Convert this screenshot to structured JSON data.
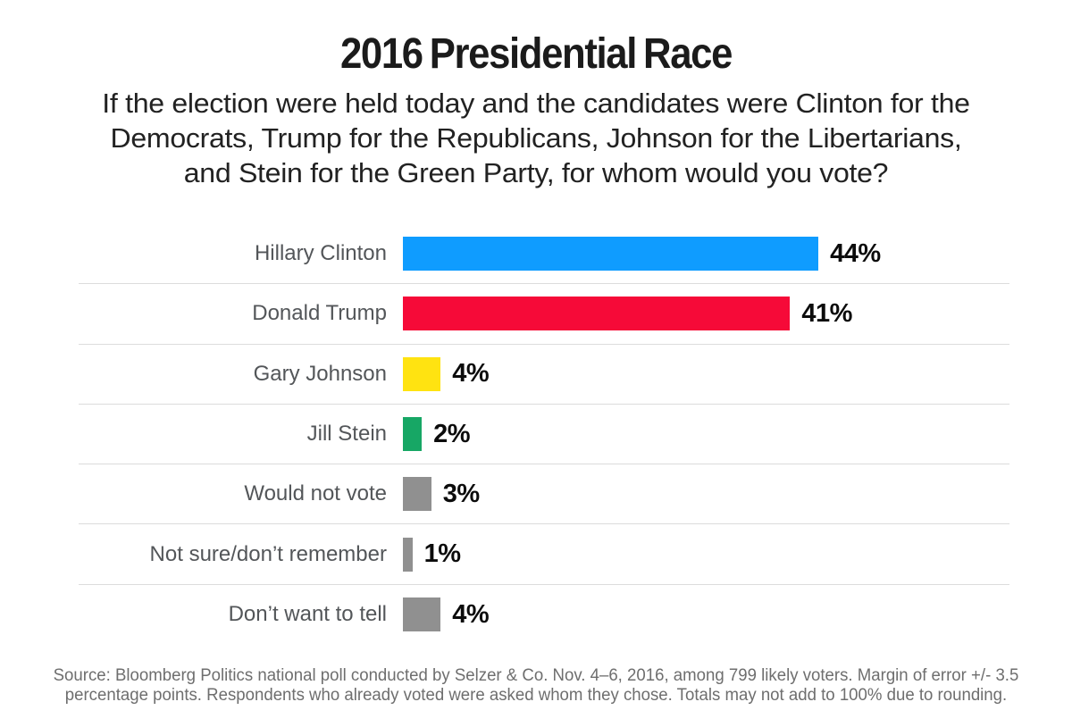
{
  "chart_data": {
    "type": "bar",
    "orientation": "horizontal",
    "title": "2016 Presidential Race",
    "subtitle": "If the election were held today and the candidates were Clinton for the\nDemocrats, Trump for the Republicans, Johnson for the Libertarians,\nand Stein for the Green Party, for whom would you vote?",
    "categories": [
      "Hillary Clinton",
      "Donald Trump",
      "Gary Johnson",
      "Jill Stein",
      "Would not vote",
      "Not sure/don’t remember",
      "Don’t want to tell"
    ],
    "values": [
      44,
      41,
      4,
      2,
      3,
      1,
      4
    ],
    "value_labels": [
      "44%",
      "41%",
      "4%",
      "2%",
      "3%",
      "1%",
      "4%"
    ],
    "bar_colors": [
      "#0F9CFF",
      "#F60A38",
      "#FFE311",
      "#17A765",
      "#909090",
      "#909090",
      "#909090"
    ],
    "xlim": [
      0,
      47
    ],
    "grid": false,
    "legend": false,
    "source": "Source: Bloomberg Politics national poll conducted by Selzer & Co. Nov. 4–6, 2016, among 799 likely voters. Margin of error +/- 3.5\npercentage points. Respondents who already voted were asked whom they chose. Totals may not add to 100% due to rounding."
  }
}
